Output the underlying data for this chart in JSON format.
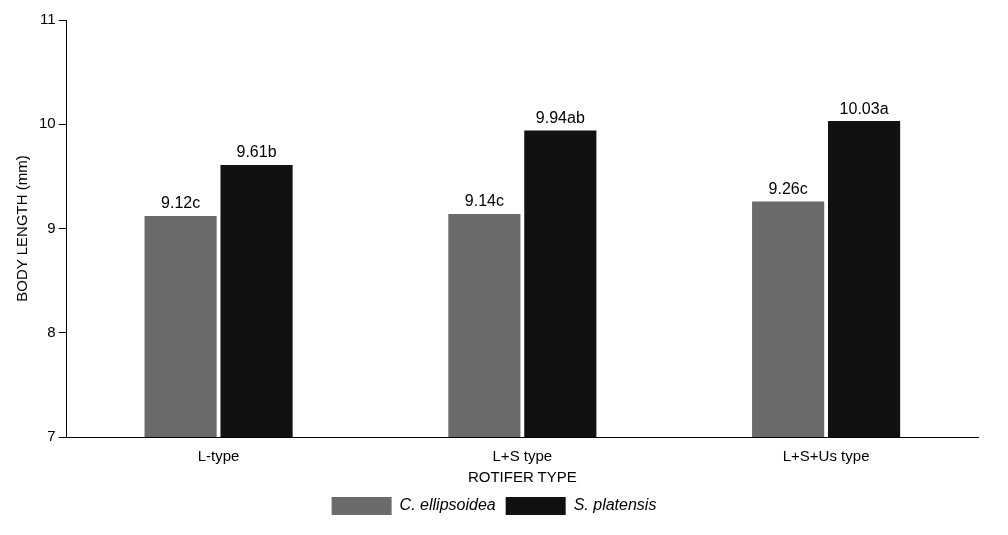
{
  "chart_data": {
    "type": "bar",
    "xlabel": "ROTIFER TYPE",
    "ylabel": "BODY LENGTH (mm)",
    "categories": [
      "L-type",
      "L+S type",
      "L+S+Us type"
    ],
    "series": [
      {
        "name": "C. ellipsoidea",
        "color": "#6b6b6b",
        "values": [
          9.12,
          9.14,
          9.26
        ],
        "value_labels": [
          "9.12c",
          "9.14c",
          "9.26c"
        ]
      },
      {
        "name": "S. platensis",
        "color": "#111111",
        "values": [
          9.61,
          9.94,
          10.03
        ],
        "value_labels": [
          "9.61b",
          "9.94ab",
          "10.03a"
        ]
      }
    ],
    "ylim": [
      7,
      11
    ],
    "yticks": [
      7,
      8,
      9,
      10,
      11
    ],
    "grid": false,
    "legend": "bottom"
  }
}
